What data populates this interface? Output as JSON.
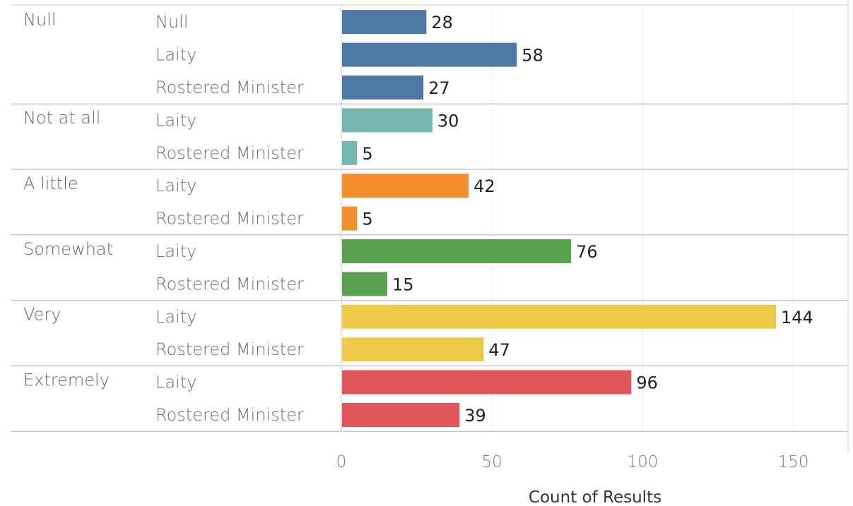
{
  "chart_data": {
    "type": "bar",
    "orientation": "horizontal",
    "xlabel": "Count of Results",
    "xlim": [
      0,
      160
    ],
    "xticks": [
      0,
      50,
      100,
      150
    ],
    "grid": true,
    "groups": [
      {
        "name": "Null",
        "color": "#4e79a7",
        "rows": [
          {
            "label": "Null",
            "value": 28
          },
          {
            "label": "Laity",
            "value": 58
          },
          {
            "label": "Rostered Minister",
            "value": 27
          }
        ]
      },
      {
        "name": "Not at all",
        "color": "#76b7b2",
        "rows": [
          {
            "label": "Laity",
            "value": 30
          },
          {
            "label": "Rostered Minister",
            "value": 5
          }
        ]
      },
      {
        "name": "A little",
        "color": "#f28e2b",
        "rows": [
          {
            "label": "Laity",
            "value": 42
          },
          {
            "label": "Rostered Minister",
            "value": 5
          }
        ]
      },
      {
        "name": "Somewhat",
        "color": "#59a14f",
        "rows": [
          {
            "label": "Laity",
            "value": 76
          },
          {
            "label": "Rostered Minister",
            "value": 15
          }
        ]
      },
      {
        "name": "Very",
        "color": "#edc948",
        "rows": [
          {
            "label": "Laity",
            "value": 144
          },
          {
            "label": "Rostered Minister",
            "value": 47
          }
        ]
      },
      {
        "name": "Extremely",
        "color": "#e15759",
        "rows": [
          {
            "label": "Laity",
            "value": 96
          },
          {
            "label": "Rostered Minister",
            "value": 39
          }
        ]
      }
    ]
  }
}
